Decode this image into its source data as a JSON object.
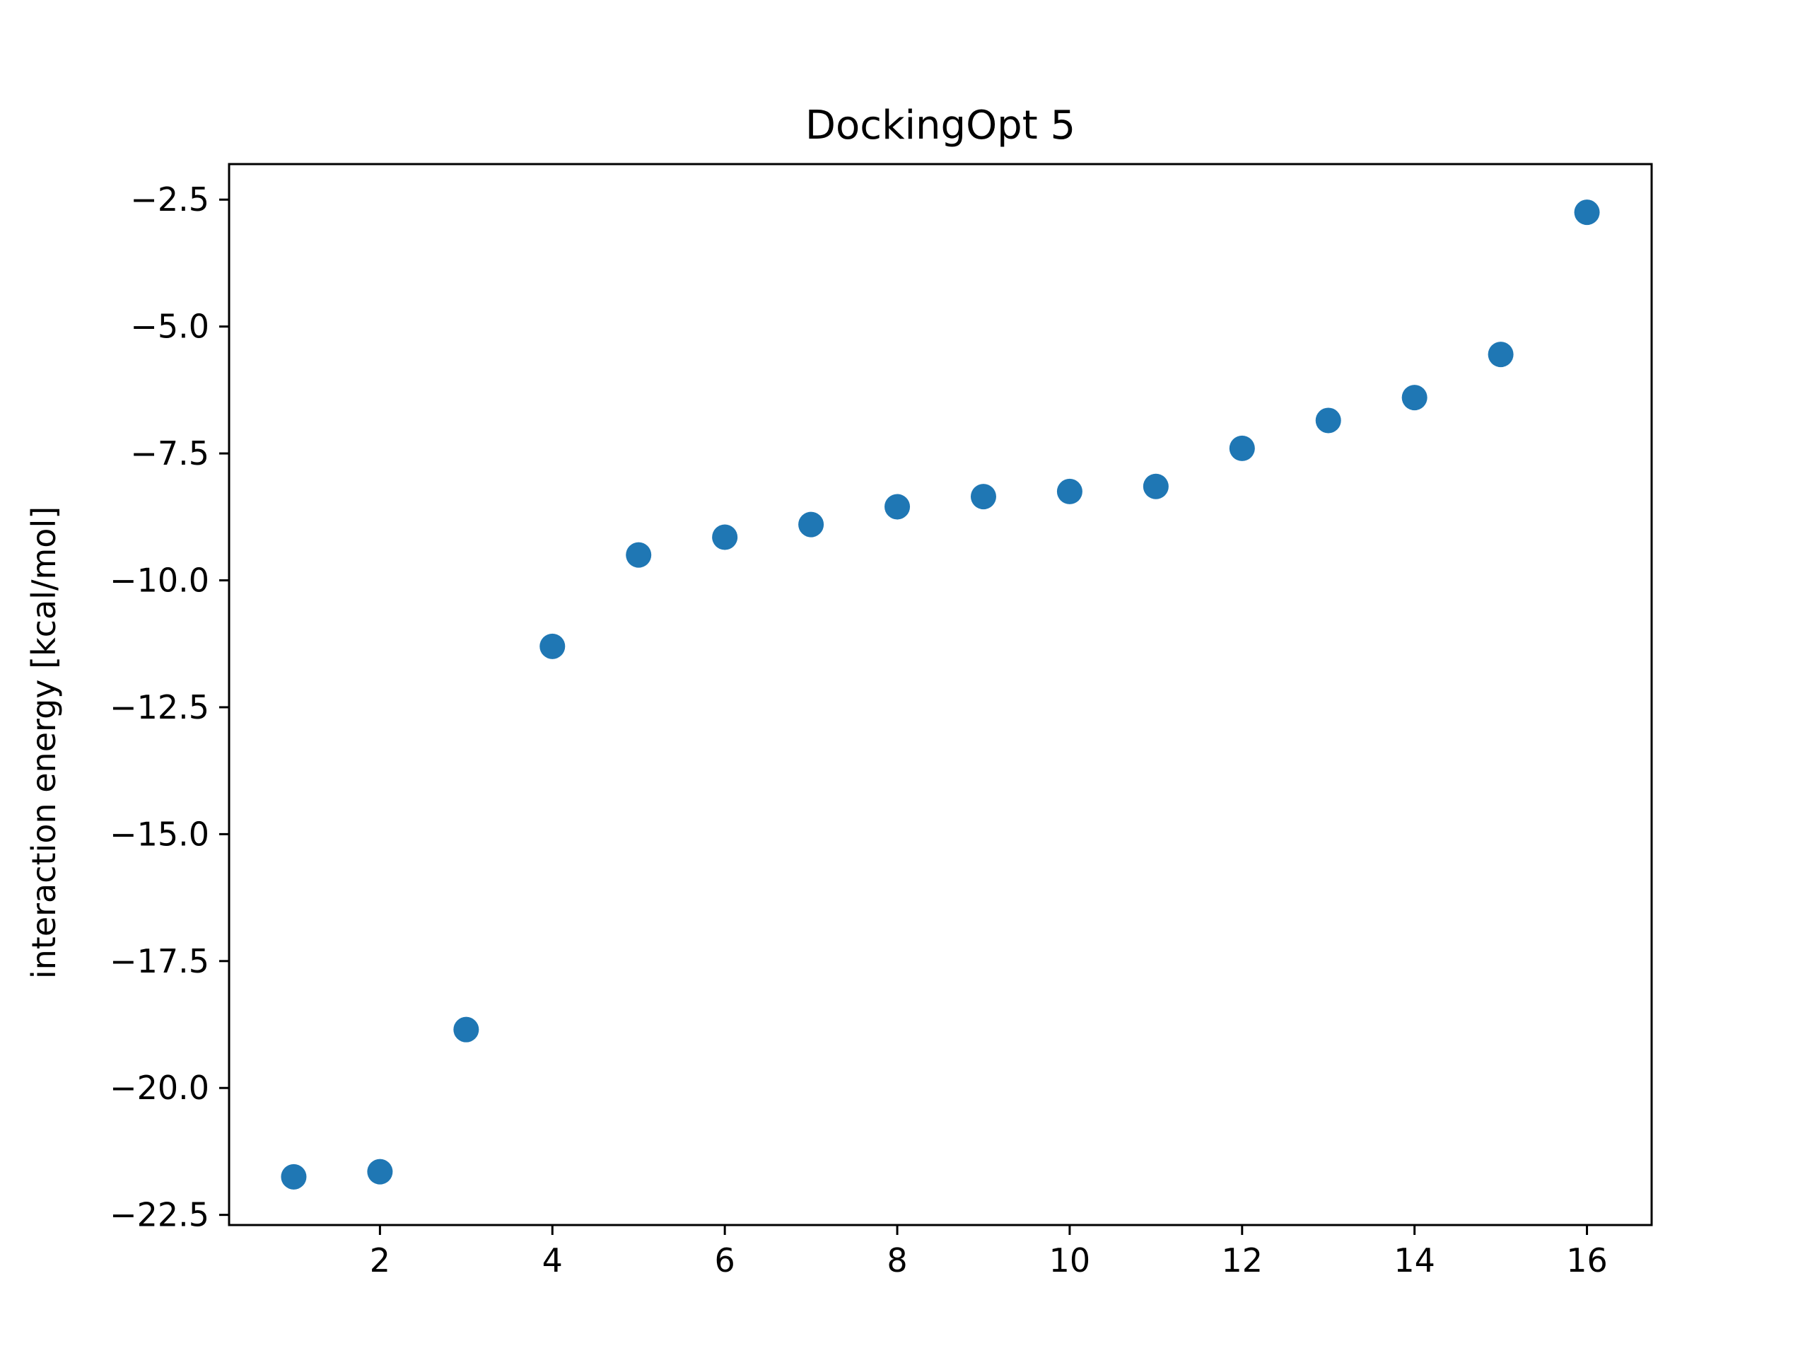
{
  "chart_data": {
    "type": "scatter",
    "title": "DockingOpt 5",
    "xlabel": "",
    "ylabel": "interaction energy [kcal/mol]",
    "xlim": [
      0.25,
      16.75
    ],
    "ylim": [
      -22.7,
      -1.8
    ],
    "xticks": [
      2,
      4,
      6,
      8,
      10,
      12,
      14,
      16
    ],
    "xtick_labels": [
      "2",
      "4",
      "6",
      "8",
      "10",
      "12",
      "14",
      "16"
    ],
    "yticks": [
      -2.5,
      -5.0,
      -7.5,
      -10.0,
      -12.5,
      -15.0,
      -17.5,
      -20.0,
      -22.5
    ],
    "ytick_labels": [
      "−2.5",
      "−5.0",
      "−7.5",
      "−10.0",
      "−12.5",
      "−15.0",
      "−17.5",
      "−20.0",
      "−22.5"
    ],
    "grid": false,
    "color": "#1f77b4",
    "x": [
      1,
      2,
      3,
      4,
      5,
      6,
      7,
      8,
      9,
      10,
      11,
      12,
      13,
      14,
      15,
      16
    ],
    "y": [
      -21.75,
      -21.65,
      -18.85,
      -11.3,
      -9.5,
      -9.15,
      -8.9,
      -8.55,
      -8.35,
      -8.25,
      -8.15,
      -7.4,
      -6.85,
      -6.4,
      -5.55,
      -2.75
    ]
  }
}
